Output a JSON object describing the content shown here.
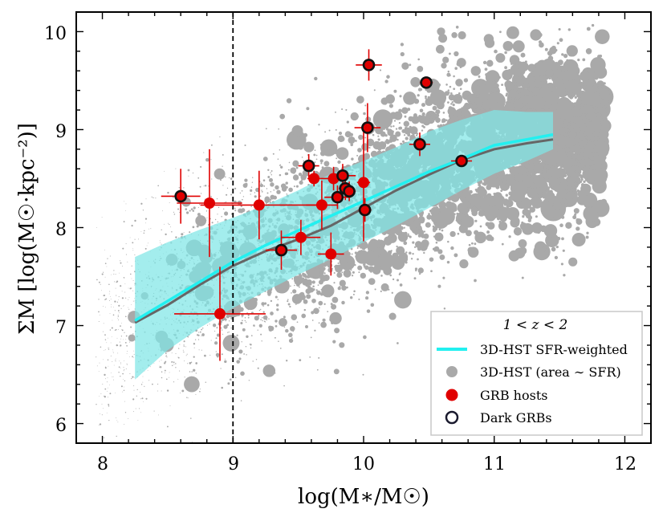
{
  "chart_data": {
    "type": "scatter",
    "xlabel": "log(M∗/M☉)",
    "ylabel": "ΣM [log(M☉·kpc⁻²)]",
    "xlim": [
      7.8,
      12.2
    ],
    "ylim": [
      5.8,
      10.2
    ],
    "xticks": [
      "8",
      "9",
      "10",
      "11",
      "12"
    ],
    "yticks": [
      "6",
      "7",
      "8",
      "9",
      "10"
    ],
    "vline_x": 9.0,
    "legend": {
      "title": "1 < z < 2",
      "location": "bottom-right",
      "entries": [
        "3D-HST SFR-weighted",
        "3D-HST (area ∼ SFR)",
        "GRB hosts",
        "Dark GRBs"
      ]
    },
    "colors": {
      "cyan": "#22f0f0",
      "band": "#7fe6e6",
      "band_on_points": "#6bc4c6",
      "gray_line": "#666666",
      "points": "#a9a9a9",
      "grb": "#e00000"
    },
    "sfr_weighted_line": {
      "x": [
        8.25,
        8.5,
        8.75,
        9.0,
        9.25,
        9.5,
        9.75,
        10.0,
        10.25,
        10.5,
        10.75,
        11.0,
        11.25,
        11.45
      ],
      "y": [
        7.05,
        7.25,
        7.45,
        7.65,
        7.82,
        7.97,
        8.12,
        8.27,
        8.42,
        8.57,
        8.7,
        8.84,
        8.9,
        8.95
      ]
    },
    "median_line": {
      "x": [
        8.25,
        8.5,
        8.75,
        9.0,
        9.25,
        9.5,
        9.75,
        10.0,
        10.25,
        10.5,
        10.75,
        11.0,
        11.25,
        11.45
      ],
      "y": [
        7.03,
        7.21,
        7.42,
        7.61,
        7.76,
        7.88,
        8.02,
        8.2,
        8.38,
        8.54,
        8.69,
        8.8,
        8.86,
        8.9
      ]
    },
    "band": {
      "x": [
        8.25,
        8.5,
        8.75,
        9.0,
        9.25,
        9.5,
        9.75,
        10.0,
        10.25,
        10.5,
        10.75,
        11.0,
        11.25,
        11.45
      ],
      "lower": [
        6.45,
        6.75,
        6.98,
        7.18,
        7.35,
        7.52,
        7.68,
        7.85,
        8.02,
        8.2,
        8.38,
        8.55,
        8.68,
        8.8
      ],
      "upper": [
        7.7,
        7.85,
        7.98,
        8.1,
        8.23,
        8.38,
        8.55,
        8.68,
        8.82,
        8.98,
        9.1,
        9.2,
        9.18,
        9.18
      ]
    },
    "grb_hosts": [
      {
        "x": 8.6,
        "y": 8.32,
        "xerr": 0.15,
        "yerr": 0.28,
        "dark": true
      },
      {
        "x": 8.82,
        "y": 8.25,
        "xerr": 0.25,
        "yerr": 0.55,
        "dark": false
      },
      {
        "x": 8.9,
        "y": 7.12,
        "xerr": 0.35,
        "yerr": 0.48,
        "dark": false
      },
      {
        "x": 9.2,
        "y": 8.23,
        "xerr": 0.45,
        "yerr": 0.35,
        "dark": false
      },
      {
        "x": 9.37,
        "y": 7.77,
        "xerr": 0.12,
        "yerr": 0.2,
        "dark": true
      },
      {
        "x": 9.52,
        "y": 7.9,
        "xerr": 0.15,
        "yerr": 0.18,
        "dark": false
      },
      {
        "x": 9.58,
        "y": 8.63,
        "xerr": 0.08,
        "yerr": 0.12,
        "dark": true
      },
      {
        "x": 9.62,
        "y": 8.5,
        "xerr": 0.05,
        "yerr": 0.08,
        "dark": false
      },
      {
        "x": 9.68,
        "y": 8.23,
        "xerr": 0.12,
        "yerr": 0.25,
        "dark": false
      },
      {
        "x": 9.75,
        "y": 7.73,
        "xerr": 0.1,
        "yerr": 0.22,
        "dark": false
      },
      {
        "x": 9.77,
        "y": 8.5,
        "xerr": 0.1,
        "yerr": 0.12,
        "dark": false
      },
      {
        "x": 9.8,
        "y": 8.31,
        "xerr": 0.1,
        "yerr": 0.12,
        "dark": true
      },
      {
        "x": 9.84,
        "y": 8.53,
        "xerr": 0.1,
        "yerr": 0.12,
        "dark": true
      },
      {
        "x": 9.86,
        "y": 8.4,
        "xerr": 0.05,
        "yerr": 0.12,
        "dark": true
      },
      {
        "x": 9.89,
        "y": 8.37,
        "xerr": 0.05,
        "yerr": 0.1,
        "dark": true
      },
      {
        "x": 10.0,
        "y": 8.46,
        "xerr": 0.05,
        "yerr": 0.6,
        "dark": false
      },
      {
        "x": 10.01,
        "y": 8.18,
        "xerr": 0.05,
        "yerr": 0.12,
        "dark": true
      },
      {
        "x": 10.03,
        "y": 9.02,
        "xerr": 0.1,
        "yerr": 0.25,
        "dark": true
      },
      {
        "x": 10.04,
        "y": 9.66,
        "xerr": 0.1,
        "yerr": 0.16,
        "dark": true
      },
      {
        "x": 10.43,
        "y": 8.85,
        "xerr": 0.08,
        "yerr": 0.12,
        "dark": true
      },
      {
        "x": 10.48,
        "y": 9.48,
        "xerr": 0.05,
        "yerr": 0.05,
        "dark": true
      },
      {
        "x": 10.75,
        "y": 8.68,
        "xerr": 0.08,
        "yerr": 0.05,
        "dark": true
      }
    ]
  }
}
